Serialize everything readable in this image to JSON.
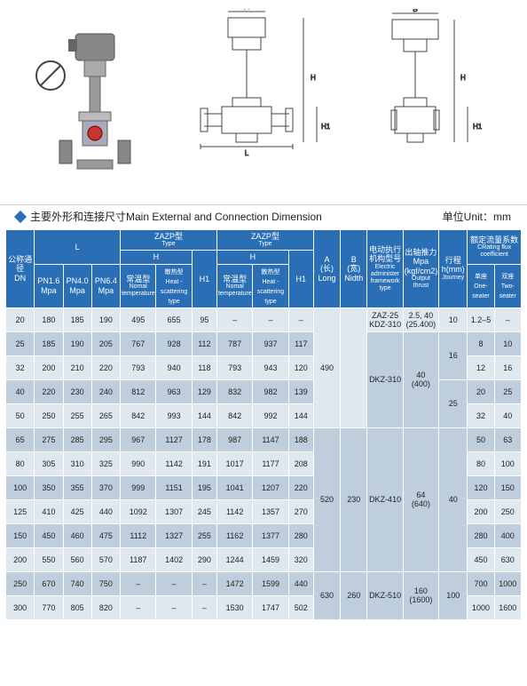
{
  "title": {
    "text": "主要外形和连接尺寸Main External and Connection Dimension",
    "unit": "单位Unit：mm"
  },
  "diagrams": {
    "colors": {
      "stroke": "#555",
      "fill_body": "#999",
      "fill_light": "#ccc"
    }
  },
  "header": {
    "dn": "公称通径\nDN",
    "L": "L",
    "zazp": "ZAZP型",
    "zazp_sub": "Type",
    "H": "H",
    "H1": "H1",
    "A": "A\n(长)\nLong",
    "B": "B\n(宽)\nNidth",
    "elec": "电动执行机构型号",
    "elec_sub": "Electric administer framework type",
    "thrust": "出轴推力\nMpa\n(kgf/cm2)",
    "thrust_sub": "Output thrust",
    "journey": "行程\nh(mm)",
    "journey_sub": "Journey",
    "flux": "额定流量系数",
    "flux_sub": "CRating flux coefficient",
    "pn16": "PN1.6\nMpa",
    "pn40": "PN4.0\nMpa",
    "pn64": "PN6.4\nMpa",
    "normal": "常温型",
    "normal_sub": "Nomal temperature",
    "heat": "散热型 Heat -scattering type",
    "one": "单座\nOne-seater",
    "two": "双座\nTwo-seater"
  },
  "rows": [
    {
      "dn": "20",
      "p16": "180",
      "p40": "185",
      "p64": "190",
      "h_n": "495",
      "h_s": "655",
      "h1": "95",
      "h2_n": "–",
      "h2_s": "–",
      "h2_1": "–"
    },
    {
      "dn": "25",
      "p16": "185",
      "p40": "190",
      "p64": "205",
      "h_n": "767",
      "h_s": "928",
      "h1": "112",
      "h2_n": "787",
      "h2_s": "937",
      "h2_1": "117"
    },
    {
      "dn": "32",
      "p16": "200",
      "p40": "210",
      "p64": "220",
      "h_n": "793",
      "h_s": "940",
      "h1": "118",
      "h2_n": "793",
      "h2_s": "943",
      "h2_1": "120"
    },
    {
      "dn": "40",
      "p16": "220",
      "p40": "230",
      "p64": "240",
      "h_n": "812",
      "h_s": "963",
      "h1": "129",
      "h2_n": "832",
      "h2_s": "982",
      "h2_1": "139"
    },
    {
      "dn": "50",
      "p16": "250",
      "p40": "255",
      "p64": "265",
      "h_n": "842",
      "h_s": "993",
      "h1": "144",
      "h2_n": "842",
      "h2_s": "992",
      "h2_1": "144"
    },
    {
      "dn": "65",
      "p16": "275",
      "p40": "285",
      "p64": "295",
      "h_n": "967",
      "h_s": "1127",
      "h1": "178",
      "h2_n": "987",
      "h2_s": "1147",
      "h2_1": "188"
    },
    {
      "dn": "80",
      "p16": "305",
      "p40": "310",
      "p64": "325",
      "h_n": "990",
      "h_s": "1142",
      "h1": "191",
      "h2_n": "1017",
      "h2_s": "1177",
      "h2_1": "208"
    },
    {
      "dn": "100",
      "p16": "350",
      "p40": "355",
      "p64": "370",
      "h_n": "999",
      "h_s": "1151",
      "h1": "195",
      "h2_n": "1041",
      "h2_s": "1207",
      "h2_1": "220"
    },
    {
      "dn": "125",
      "p16": "410",
      "p40": "425",
      "p64": "440",
      "h_n": "1092",
      "h_s": "1307",
      "h1": "245",
      "h2_n": "1142",
      "h2_s": "1357",
      "h2_1": "270"
    },
    {
      "dn": "150",
      "p16": "450",
      "p40": "460",
      "p64": "475",
      "h_n": "1112",
      "h_s": "1327",
      "h1": "255",
      "h2_n": "1162",
      "h2_s": "1377",
      "h2_1": "280"
    },
    {
      "dn": "200",
      "p16": "550",
      "p40": "560",
      "p64": "570",
      "h_n": "1187",
      "h_s": "1402",
      "h1": "290",
      "h2_n": "1244",
      "h2_s": "1459",
      "h2_1": "320"
    },
    {
      "dn": "250",
      "p16": "670",
      "p40": "740",
      "p64": "750",
      "h_n": "–",
      "h_s": "–",
      "h1": "–",
      "h2_n": "1472",
      "h2_s": "1599",
      "h2_1": "440"
    },
    {
      "dn": "300",
      "p16": "770",
      "p40": "805",
      "p64": "820",
      "h_n": "–",
      "h_s": "–",
      "h1": "–",
      "h2_n": "1530",
      "h2_s": "1747",
      "h2_1": "502"
    }
  ],
  "merge": {
    "A1": "490",
    "A2": "520",
    "A3": "630",
    "B1": "230",
    "B2": "260",
    "elec1": "ZAZ-25\nKDZ-310",
    "elec2": "DKZ-310",
    "elec3": "DKZ-410",
    "elec4": "DKZ-510",
    "thrust1": "2.5, 40\n(25.400)",
    "thrust2": "40\n(400)",
    "thrust3": "64\n(640)",
    "thrust4": "160\n(1600)",
    "jour1": "10",
    "jour2": "16",
    "jour3": "25",
    "jour4": "40",
    "jour5": "100",
    "flux": [
      {
        "one": "1.2–5",
        "two": "–"
      },
      {
        "one": "8",
        "two": "10"
      },
      {
        "one": "12",
        "two": "16"
      },
      {
        "one": "20",
        "two": "25"
      },
      {
        "one": "32",
        "two": "40"
      },
      {
        "one": "50",
        "two": "63"
      },
      {
        "one": "80",
        "two": "100"
      },
      {
        "one": "120",
        "two": "150"
      },
      {
        "one": "200",
        "two": "250"
      },
      {
        "one": "280",
        "two": "400"
      },
      {
        "one": "450",
        "two": "630"
      },
      {
        "one": "700",
        "two": "1000"
      },
      {
        "one": "1000",
        "two": "1600"
      }
    ]
  }
}
